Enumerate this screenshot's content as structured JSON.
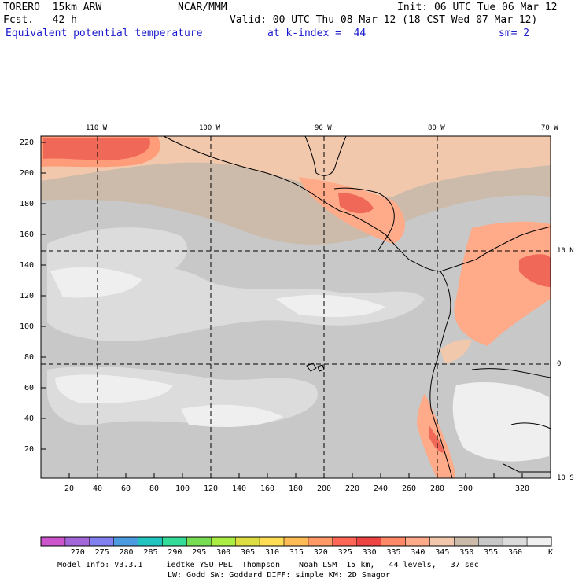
{
  "header": {
    "model": "TORERO  15km ARW",
    "org": "NCAR/MMM",
    "init": "Init: 06 UTC Tue 06 Mar 12",
    "fcst": "Fcst.   42 h",
    "valid": "Valid: 00 UTC Thu 08 Mar 12 (18 CST Wed 07 Mar 12)",
    "field": "Equivalent potential temperature",
    "level": "at k-index =  44",
    "smooth": "sm= 2"
  },
  "map": {
    "top_lon_labels": [
      "110 W",
      "100 W",
      "90 W",
      "80 W",
      "70 W"
    ],
    "right_lat_labels": [
      "10 N",
      "0",
      "10 S"
    ],
    "x_ticks": [
      "20",
      "40",
      "60",
      "80",
      "100",
      "120",
      "140",
      "160",
      "180",
      "200",
      "220",
      "240",
      "260",
      "280",
      "300",
      "320"
    ],
    "y_ticks": [
      "220",
      "200",
      "180",
      "160",
      "140",
      "120",
      "100",
      "80",
      "60",
      "40",
      "20"
    ]
  },
  "colorbar": {
    "colors": [
      "#cc55cc",
      "#a366d9",
      "#8080ee",
      "#4a9be0",
      "#22c4c0",
      "#33dd99",
      "#77dd55",
      "#aaee44",
      "#dddd44",
      "#ffdd55",
      "#ffbb55",
      "#ff9966",
      "#ff6655",
      "#ee4444",
      "#ff8866",
      "#ffaa88",
      "#f2c8ad",
      "#ccbbaa",
      "#c8c8c8",
      "#dcdcdc",
      "#f0f0f0"
    ],
    "labels": [
      "270",
      "275",
      "280",
      "285",
      "290",
      "295",
      "300",
      "305",
      "310",
      "315",
      "320",
      "325",
      "330",
      "335",
      "340",
      "345",
      "350",
      "355",
      "360"
    ],
    "unit": "K"
  },
  "footer": {
    "line1": "Model Info: V3.3.1    Tiedtke YSU PBL  Thompson    Noah LSM  15 km,   44 levels,   37 sec",
    "line2": "LW: Godd SW: Goddard DIFF: simple KM: 2D Smagor"
  }
}
